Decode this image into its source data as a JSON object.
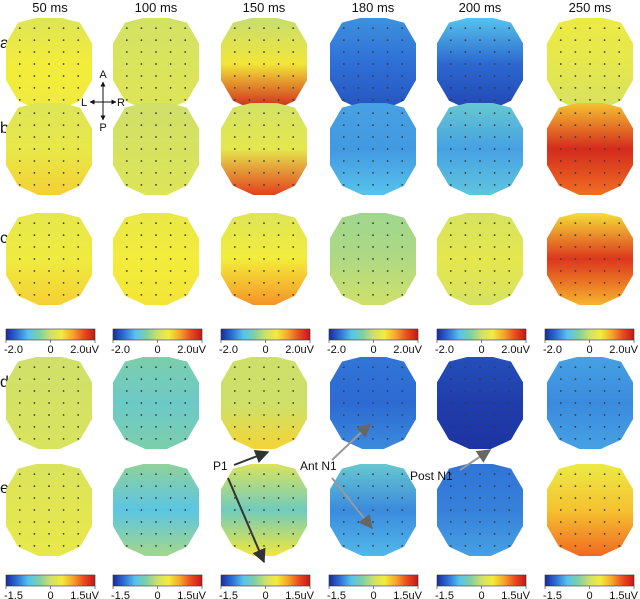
{
  "figure": {
    "time_headers": [
      "50 ms",
      "100 ms",
      "150 ms",
      "180 ms",
      "200 ms",
      "250 ms"
    ],
    "row_labels": [
      "a",
      "b",
      "c",
      "d",
      "e"
    ],
    "orientation": {
      "anterior": "A",
      "posterior": "P",
      "left": "L",
      "right": "R"
    },
    "colorbars": [
      {
        "ticks": [
          "-2.0",
          "0",
          "2.0"
        ],
        "unit": "uV"
      },
      {
        "ticks": [
          "-1.5",
          "0",
          "1.5"
        ],
        "unit": "uV"
      }
    ],
    "annotations": [
      "P1",
      "Ant N1",
      "Post N1"
    ],
    "colormap": [
      "#1a2b9a",
      "#2e6fd6",
      "#56c3ec",
      "#7fcfa6",
      "#cfe06a",
      "#f3ec3a",
      "#f7a62a",
      "#ec4b1f",
      "#c4161c"
    ]
  },
  "chart_data": {
    "type": "heatmap",
    "description_of_values": "mean potential level per map region on the color scale",
    "rows": [
      {
        "label": "a",
        "range_uV": [
          -2.0,
          2.0
        ],
        "maps": [
          {
            "time": "50 ms",
            "front": 0.2,
            "middle": 0.5,
            "back": 0.45
          },
          {
            "time": "100 ms",
            "front": 0.05,
            "middle": 0.15,
            "back": 0.2
          },
          {
            "time": "150 ms",
            "front": -0.05,
            "middle": 0.55,
            "back": 1.9
          },
          {
            "time": "180 ms",
            "front": -1.3,
            "middle": -1.5,
            "back": -1.7
          },
          {
            "time": "200 ms",
            "front": -1.0,
            "middle": -1.55,
            "back": -1.8
          },
          {
            "time": "250 ms",
            "front": 0.4,
            "middle": 0.3,
            "back": 0.1
          }
        ]
      },
      {
        "label": "b",
        "range_uV": [
          -2.0,
          2.0
        ],
        "maps": [
          {
            "time": "50 ms",
            "front": 0.2,
            "middle": 0.35,
            "back": 0.7
          },
          {
            "time": "100 ms",
            "front": 0.0,
            "middle": 0.1,
            "back": 0.2
          },
          {
            "time": "150 ms",
            "front": 0.05,
            "middle": 0.3,
            "back": 1.6
          },
          {
            "time": "180 ms",
            "front": -1.2,
            "middle": -1.25,
            "back": -1.0
          },
          {
            "time": "200 ms",
            "front": -0.8,
            "middle": -1.2,
            "back": -0.9
          },
          {
            "time": "250 ms",
            "front": 0.8,
            "middle": 1.8,
            "back": 1.3
          }
        ]
      },
      {
        "label": "c",
        "range_uV": [
          -2.0,
          2.0
        ],
        "maps": [
          {
            "time": "50 ms",
            "front": 0.3,
            "middle": 0.45,
            "back": 0.7
          },
          {
            "time": "100 ms",
            "front": 0.35,
            "middle": 0.5,
            "back": 0.55
          },
          {
            "time": "150 ms",
            "front": 0.2,
            "middle": 0.5,
            "back": 1.1
          },
          {
            "time": "180 ms",
            "front": -0.3,
            "middle": -0.2,
            "back": 0.0
          },
          {
            "time": "200 ms",
            "front": 0.1,
            "middle": 0.3,
            "back": 0.1
          },
          {
            "time": "250 ms",
            "front": 0.6,
            "middle": 1.7,
            "back": 0.9
          }
        ]
      },
      {
        "label": "d",
        "range_uV": [
          -1.5,
          1.5
        ],
        "maps": [
          {
            "time": "50 ms",
            "front": 0.0,
            "middle": 0.05,
            "back": 0.1
          },
          {
            "time": "100 ms",
            "front": -0.4,
            "middle": -0.55,
            "back": -0.4
          },
          {
            "time": "150 ms",
            "front": 0.0,
            "middle": 0.0,
            "back": 0.5
          },
          {
            "time": "180 ms",
            "front": -1.1,
            "middle": -1.15,
            "back": -1.0
          },
          {
            "time": "200 ms",
            "front": -1.3,
            "middle": -1.4,
            "back": -1.45
          },
          {
            "time": "250 ms",
            "front": -0.9,
            "middle": -1.0,
            "back": -0.9
          }
        ]
      },
      {
        "label": "e",
        "range_uV": [
          -1.5,
          1.5
        ],
        "maps": [
          {
            "time": "50 ms",
            "front": 0.1,
            "middle": 0.2,
            "back": 0.25
          },
          {
            "time": "100 ms",
            "front": -0.3,
            "middle": -0.7,
            "back": -0.2
          },
          {
            "time": "150 ms",
            "front": 0.1,
            "middle": -0.5,
            "back": 0.4
          },
          {
            "time": "180 ms",
            "front": -0.6,
            "middle": -1.0,
            "back": -0.8
          },
          {
            "time": "200 ms",
            "front": -1.1,
            "middle": -1.05,
            "back": -0.9
          },
          {
            "time": "250 ms",
            "front": 0.3,
            "middle": 0.6,
            "back": 1.0
          }
        ]
      }
    ]
  }
}
